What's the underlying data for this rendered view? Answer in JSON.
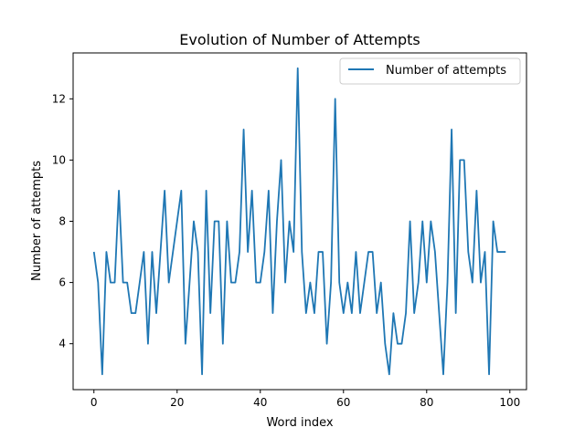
{
  "chart_data": {
    "type": "line",
    "title": "Evolution of Number of Attempts",
    "xlabel": "Word index",
    "ylabel": "Number of attempts",
    "xlim": [
      -5,
      104
    ],
    "ylim": [
      2.5,
      13.5
    ],
    "xticks": [
      0,
      20,
      40,
      60,
      80,
      100
    ],
    "yticks": [
      4,
      6,
      8,
      10,
      12
    ],
    "grid": false,
    "legend_position": "top-right",
    "series": [
      {
        "name": "Number of attempts",
        "color": "#1f77b4",
        "x": [
          0,
          1,
          2,
          3,
          4,
          5,
          6,
          7,
          8,
          9,
          10,
          11,
          12,
          13,
          14,
          15,
          16,
          17,
          18,
          19,
          20,
          21,
          22,
          23,
          24,
          25,
          26,
          27,
          28,
          29,
          30,
          31,
          32,
          33,
          34,
          35,
          36,
          37,
          38,
          39,
          40,
          41,
          42,
          43,
          44,
          45,
          46,
          47,
          48,
          49,
          50,
          51,
          52,
          53,
          54,
          55,
          56,
          57,
          58,
          59,
          60,
          61,
          62,
          63,
          64,
          65,
          66,
          67,
          68,
          69,
          70,
          71,
          72,
          73,
          74,
          75,
          76,
          77,
          78,
          79,
          80,
          81,
          82,
          83,
          84,
          85,
          86,
          87,
          88,
          89,
          90,
          91,
          92,
          93,
          94,
          95,
          96,
          97,
          98,
          99
        ],
        "values": [
          7,
          6,
          3,
          7,
          6,
          6,
          9,
          6,
          6,
          5,
          5,
          6,
          7,
          4,
          7,
          5,
          7,
          9,
          6,
          7,
          8,
          9,
          4,
          6,
          8,
          7,
          3,
          9,
          5,
          8,
          8,
          4,
          8,
          6,
          6,
          7,
          11,
          7,
          9,
          6,
          6,
          7,
          9,
          5,
          8,
          10,
          6,
          8,
          7,
          13,
          7,
          5,
          6,
          5,
          7,
          7,
          4,
          6,
          12,
          6,
          5,
          6,
          5,
          7,
          5,
          6,
          7,
          7,
          5,
          6,
          4,
          3,
          5,
          4,
          4,
          5,
          8,
          5,
          6,
          8,
          6,
          8,
          7,
          5,
          3,
          6,
          11,
          5,
          10,
          10,
          7,
          6,
          9,
          6,
          7,
          3,
          8,
          7,
          7,
          7
        ]
      }
    ]
  }
}
